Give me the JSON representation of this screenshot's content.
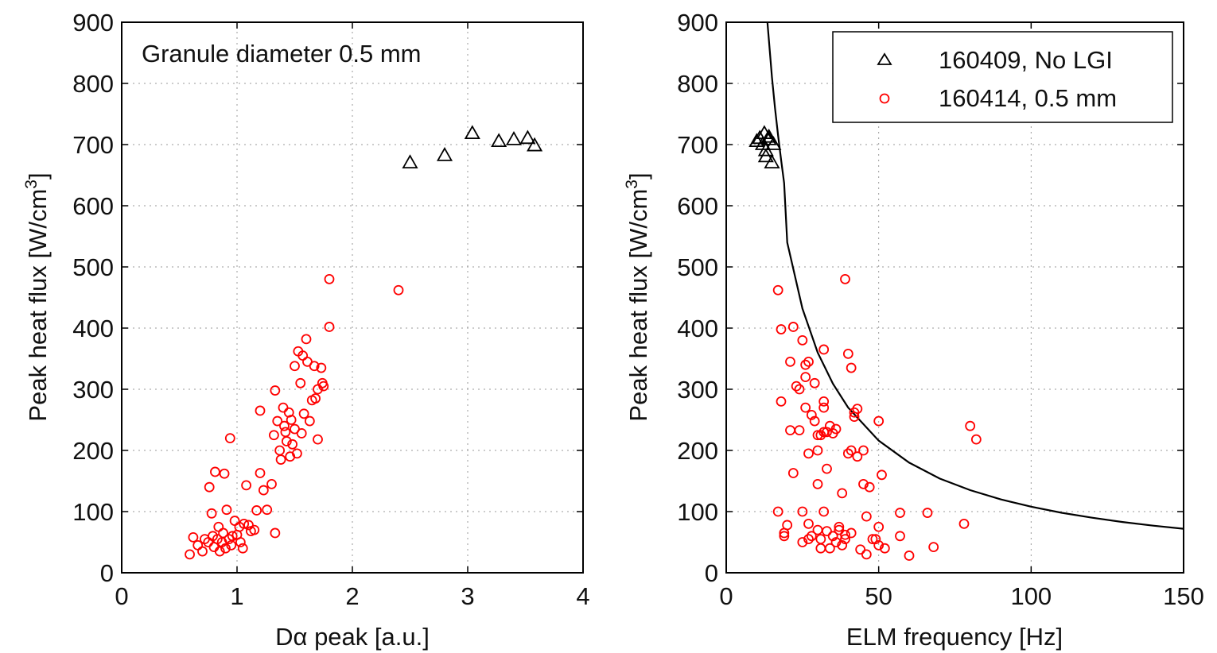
{
  "chart_data": [
    {
      "type": "scatter",
      "title": "",
      "xlabel": "Dα peak [a.u.]",
      "ylabel": "Peak heat flux [W/cm",
      "ylabel_superscript": "3",
      "ylabel_suffix": "]",
      "annotation": "Granule diameter 0.5 mm",
      "xlim": [
        0,
        4
      ],
      "ylim": [
        0,
        900
      ],
      "xticks": [
        0,
        1,
        2,
        3,
        4
      ],
      "yticks": [
        0,
        100,
        200,
        300,
        400,
        500,
        600,
        700,
        800,
        900
      ],
      "grid": true,
      "series": [
        {
          "marker": "triangle",
          "color": "#000000",
          "points": [
            [
              2.5,
              670
            ],
            [
              2.8,
              682
            ],
            [
              3.04,
              718
            ],
            [
              3.27,
              705
            ],
            [
              3.4,
              708
            ],
            [
              3.52,
              710
            ],
            [
              3.58,
              698
            ]
          ]
        },
        {
          "marker": "circle",
          "color": "#ff0000",
          "points": [
            [
              0.59,
              30
            ],
            [
              0.62,
              58
            ],
            [
              0.66,
              45
            ],
            [
              0.7,
              35
            ],
            [
              0.72,
              55
            ],
            [
              0.75,
              50
            ],
            [
              0.76,
              140
            ],
            [
              0.78,
              97
            ],
            [
              0.79,
              60
            ],
            [
              0.8,
              42
            ],
            [
              0.81,
              165
            ],
            [
              0.83,
              55
            ],
            [
              0.84,
              75
            ],
            [
              0.85,
              35
            ],
            [
              0.87,
              50
            ],
            [
              0.88,
              65
            ],
            [
              0.89,
              162
            ],
            [
              0.9,
              40
            ],
            [
              0.91,
              103
            ],
            [
              0.93,
              55
            ],
            [
              0.94,
              220
            ],
            [
              0.95,
              45
            ],
            [
              0.96,
              60
            ],
            [
              0.98,
              85
            ],
            [
              1.0,
              62
            ],
            [
              1.02,
              75
            ],
            [
              1.03,
              50
            ],
            [
              1.05,
              40
            ],
            [
              1.06,
              80
            ],
            [
              1.08,
              143
            ],
            [
              1.1,
              78
            ],
            [
              1.12,
              68
            ],
            [
              1.15,
              70
            ],
            [
              1.17,
              102
            ],
            [
              1.2,
              163
            ],
            [
              1.2,
              265
            ],
            [
              1.23,
              135
            ],
            [
              1.26,
              103
            ],
            [
              1.3,
              145
            ],
            [
              1.32,
              225
            ],
            [
              1.33,
              298
            ],
            [
              1.33,
              65
            ],
            [
              1.35,
              248
            ],
            [
              1.37,
              200
            ],
            [
              1.38,
              185
            ],
            [
              1.4,
              270
            ],
            [
              1.41,
              240
            ],
            [
              1.42,
              230
            ],
            [
              1.43,
              215
            ],
            [
              1.45,
              262
            ],
            [
              1.46,
              190
            ],
            [
              1.47,
              250
            ],
            [
              1.48,
              210
            ],
            [
              1.5,
              235
            ],
            [
              1.5,
              338
            ],
            [
              1.52,
              195
            ],
            [
              1.53,
              362
            ],
            [
              1.55,
              310
            ],
            [
              1.56,
              228
            ],
            [
              1.57,
              355
            ],
            [
              1.58,
              260
            ],
            [
              1.6,
              382
            ],
            [
              1.61,
              345
            ],
            [
              1.63,
              248
            ],
            [
              1.65,
              282
            ],
            [
              1.67,
              338
            ],
            [
              1.68,
              285
            ],
            [
              1.7,
              300
            ],
            [
              1.7,
              218
            ],
            [
              1.73,
              335
            ],
            [
              1.74,
              310
            ],
            [
              1.75,
              305
            ],
            [
              1.8,
              402
            ],
            [
              1.8,
              480
            ],
            [
              2.4,
              462
            ]
          ]
        }
      ]
    },
    {
      "type": "scatter",
      "title": "",
      "xlabel": "ELM frequency [Hz]",
      "ylabel": "Peak heat flux [W/cm",
      "ylabel_superscript": "3",
      "ylabel_suffix": "]",
      "xlim": [
        0,
        150
      ],
      "ylim": [
        0,
        900
      ],
      "xticks": [
        0,
        50,
        100,
        150
      ],
      "yticks": [
        0,
        100,
        200,
        300,
        400,
        500,
        600,
        700,
        800,
        900
      ],
      "grid": true,
      "legend_position": "top-right",
      "series": [
        {
          "name": "160409, No LGI",
          "marker": "triangle",
          "color": "#000000",
          "points": [
            [
              10,
              705
            ],
            [
              11,
              710
            ],
            [
              12,
              700
            ],
            [
              12.5,
              718
            ],
            [
              13,
              690
            ],
            [
              13,
              680
            ],
            [
              14,
              712
            ],
            [
              14,
              708
            ],
            [
              15,
              670
            ],
            [
              15.5,
              700
            ]
          ]
        },
        {
          "name": "160414, 0.5 mm",
          "marker": "circle",
          "color": "#ff0000",
          "points": [
            [
              17,
              462
            ],
            [
              17,
              100
            ],
            [
              18,
              280
            ],
            [
              18,
              398
            ],
            [
              19,
              60
            ],
            [
              19,
              65
            ],
            [
              20,
              78
            ],
            [
              21,
              233
            ],
            [
              21,
              345
            ],
            [
              22,
              402
            ],
            [
              22,
              163
            ],
            [
              23,
              305
            ],
            [
              24,
              233
            ],
            [
              24,
              300
            ],
            [
              25,
              100
            ],
            [
              25,
              380
            ],
            [
              25,
              50
            ],
            [
              26,
              340
            ],
            [
              26,
              320
            ],
            [
              26,
              270
            ],
            [
              27,
              55
            ],
            [
              27,
              195
            ],
            [
              27,
              80
            ],
            [
              27,
              345
            ],
            [
              28,
              60
            ],
            [
              28,
              258
            ],
            [
              29,
              310
            ],
            [
              29,
              248
            ],
            [
              30,
              145
            ],
            [
              30,
              200
            ],
            [
              30,
              225
            ],
            [
              30,
              70
            ],
            [
              31,
              225
            ],
            [
              31,
              55
            ],
            [
              31,
              40
            ],
            [
              32,
              230
            ],
            [
              32,
              365
            ],
            [
              32,
              280
            ],
            [
              32,
              270
            ],
            [
              32,
              100
            ],
            [
              33,
              230
            ],
            [
              33,
              68
            ],
            [
              33,
              170
            ],
            [
              34,
              240
            ],
            [
              34,
              40
            ],
            [
              35,
              228
            ],
            [
              35,
              60
            ],
            [
              36,
              235
            ],
            [
              36,
              50
            ],
            [
              37,
              75
            ],
            [
              37,
              70
            ],
            [
              38,
              45
            ],
            [
              38,
              130
            ],
            [
              39,
              480
            ],
            [
              39,
              55
            ],
            [
              39,
              62
            ],
            [
              40,
              358
            ],
            [
              40,
              195
            ],
            [
              41,
              335
            ],
            [
              41,
              65
            ],
            [
              41,
              200
            ],
            [
              42,
              262
            ],
            [
              42,
              255
            ],
            [
              43,
              268
            ],
            [
              43,
              190
            ],
            [
              44,
              38
            ],
            [
              45,
              145
            ],
            [
              45,
              200
            ],
            [
              46,
              30
            ],
            [
              46,
              92
            ],
            [
              47,
              140
            ],
            [
              48,
              55
            ],
            [
              49,
              55
            ],
            [
              50,
              75
            ],
            [
              50,
              248
            ],
            [
              50,
              45
            ],
            [
              51,
              160
            ],
            [
              52,
              40
            ],
            [
              57,
              98
            ],
            [
              57,
              60
            ],
            [
              60,
              28
            ],
            [
              66,
              98
            ],
            [
              68,
              42
            ],
            [
              78,
              80
            ],
            [
              80,
              240
            ],
            [
              82,
              218
            ]
          ]
        }
      ],
      "curve": {
        "type": "line",
        "color": "#000000",
        "points": [
          [
            13.5,
            900
          ],
          [
            14,
            870
          ],
          [
            15,
            810
          ],
          [
            16,
            760
          ],
          [
            17,
            715
          ],
          [
            18,
            675
          ],
          [
            19,
            637
          ],
          [
            20,
            540
          ],
          [
            25,
            432
          ],
          [
            30,
            360
          ],
          [
            35,
            309
          ],
          [
            40,
            270
          ],
          [
            50,
            216
          ],
          [
            60,
            180
          ],
          [
            70,
            154
          ],
          [
            80,
            135
          ],
          [
            90,
            120
          ],
          [
            100,
            108
          ],
          [
            110,
            98
          ],
          [
            120,
            90
          ],
          [
            130,
            83
          ],
          [
            140,
            77
          ],
          [
            150,
            72
          ]
        ]
      }
    }
  ]
}
